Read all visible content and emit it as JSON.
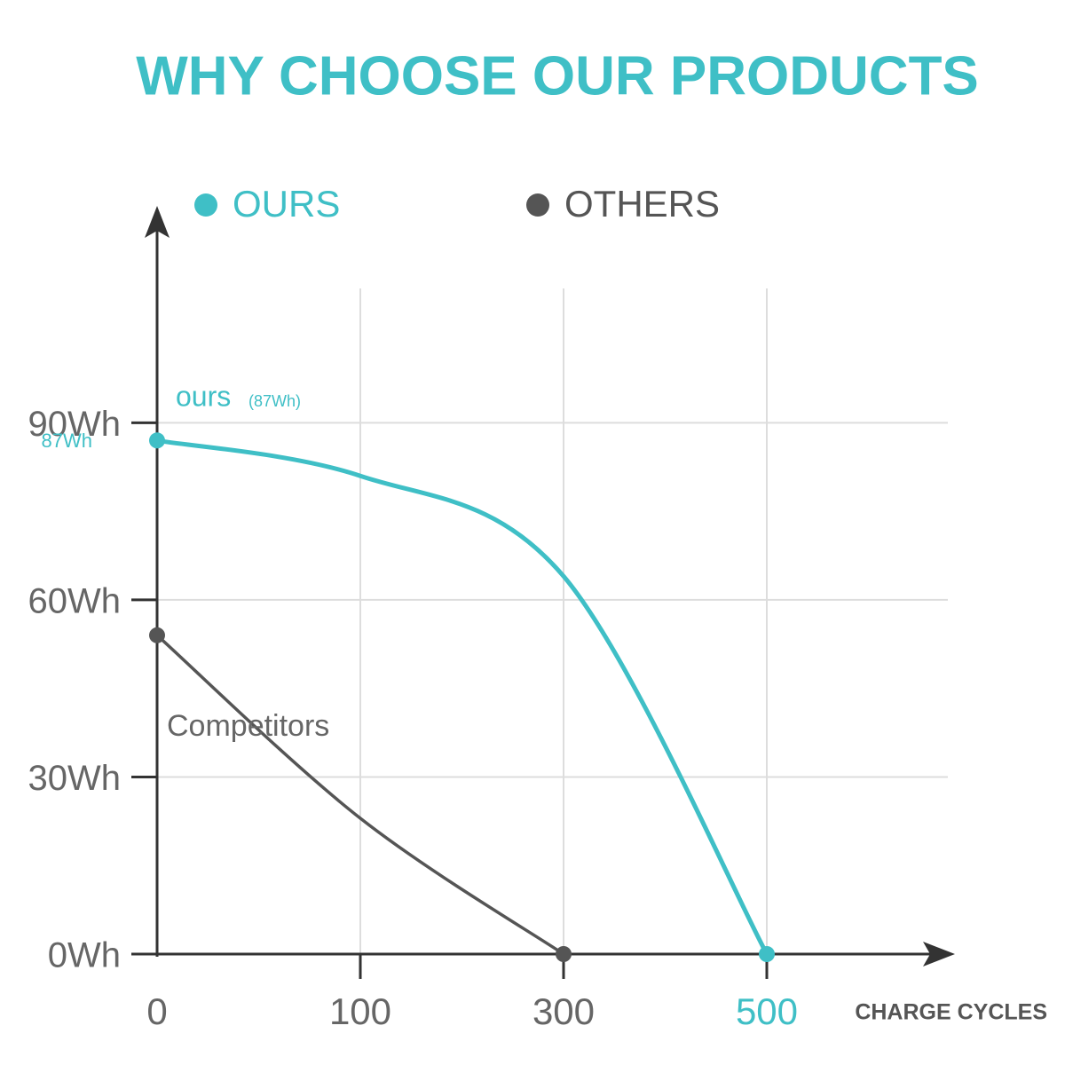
{
  "chart_data": {
    "type": "line",
    "title": "WHY CHOOSE OUR PRODUCTS",
    "x_label": "CHARGE CYCLES",
    "categories": [
      "0",
      "100",
      "300",
      "500"
    ],
    "series": [
      {
        "name": "OURS",
        "color": "#3fbfc6",
        "values": [
          87,
          81,
          64,
          0
        ]
      },
      {
        "name": "OTHERS",
        "color": "#555555",
        "values": [
          54,
          23,
          0,
          null
        ]
      }
    ],
    "ylim": [
      0,
      112
    ],
    "yticks": [
      {
        "value": 0,
        "label": "0Wh"
      },
      {
        "value": 30,
        "label": "30Wh"
      },
      {
        "value": 60,
        "label": "60Wh"
      },
      {
        "value": 90,
        "label": "90Wh"
      }
    ],
    "grid": true,
    "annotations": [
      {
        "text": "ours",
        "note": "(87Wh)"
      },
      {
        "text": "Competitors"
      }
    ],
    "y_annotation": {
      "value": 87,
      "label": "87Wh"
    }
  }
}
